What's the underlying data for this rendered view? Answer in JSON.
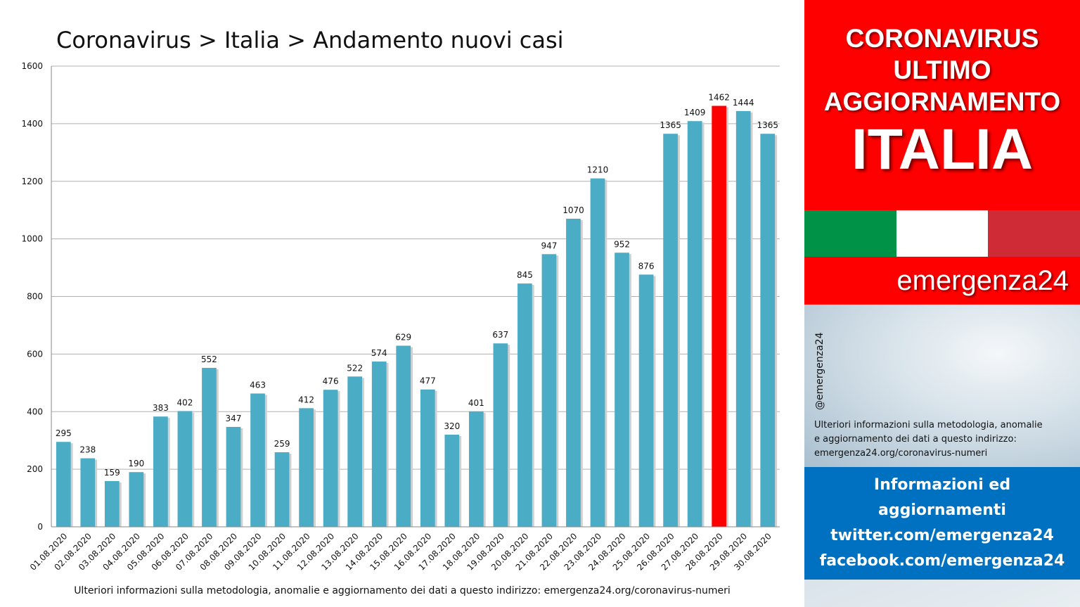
{
  "chart_data": {
    "type": "bar",
    "title": "Coronavirus > Italia > Andamento nuovi casi",
    "categories": [
      "01.08.2020",
      "02.08.2020",
      "03.08.2020",
      "04.08.2020",
      "05.08.2020",
      "06.08.2020",
      "07.08.2020",
      "08.08.2020",
      "09.08.2020",
      "10.08.2020",
      "11.08.2020",
      "12.08.2020",
      "13.08.2020",
      "14.08.2020",
      "15.08.2020",
      "16.08.2020",
      "17.08.2020",
      "18.08.2020",
      "19.08.2020",
      "20.08.2020",
      "21.08.2020",
      "22.08.2020",
      "23.08.2020",
      "24.08.2020",
      "25.08.2020",
      "26.08.2020",
      "27.08.2020",
      "28.08.2020",
      "29.08.2020",
      "30.08.2020"
    ],
    "values": [
      295,
      238,
      159,
      190,
      383,
      402,
      552,
      347,
      463,
      259,
      412,
      476,
      522,
      574,
      629,
      477,
      320,
      401,
      637,
      845,
      947,
      1070,
      1210,
      952,
      876,
      1365,
      1409,
      1462,
      1444,
      1365
    ],
    "highlight_category": "28.08.2020",
    "ylim": [
      0,
      1600
    ],
    "yticks": [
      0,
      200,
      400,
      600,
      800,
      1000,
      1200,
      1400,
      1600
    ],
    "grid": true,
    "legend": "none",
    "colors": {
      "bar": "#4bacc6",
      "highlight": "#ff0000",
      "grid": "#b0b0b0"
    }
  },
  "footer_note": "Ulteriori informazioni sulla metodologia, anomalie e aggiornamento dei dati a questo indirizzo: emergenza24.org/coronavirus-numeri",
  "side_panel": {
    "header_line1": "CORONAVIRUS",
    "header_line2": "ULTIMO",
    "header_line3": "AGGIORNAMENTO",
    "header_big": "ITALIA",
    "flag_colors": [
      "#009246",
      "#ffffff",
      "#ce2b37"
    ],
    "brand": "emergenza24",
    "handle": "@emergenza24",
    "info_line1": "Ulteriori informazioni sulla metodologia, anomalie",
    "info_line2": "e aggiornamento dei dati a questo indirizzo:",
    "info_line3": "emergenza24.org/coronavirus-numeri",
    "social_line1": "Informazioni ed",
    "social_line2": "aggiornamenti",
    "social_line3": "twitter.com/emergenza24",
    "social_line4": "facebook.com/emergenza24"
  }
}
